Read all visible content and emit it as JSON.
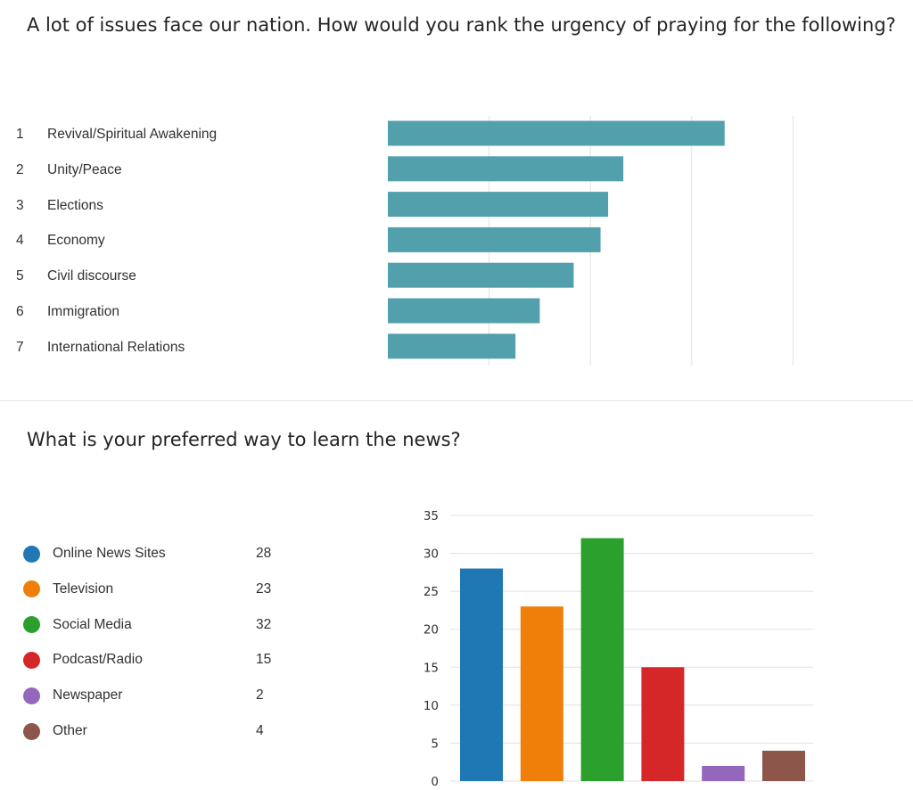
{
  "q1": {
    "title": "A lot of issues face our nation. How would you rank the urgency of praying for the following?",
    "items": [
      {
        "rank": "1",
        "label": "Revival/Spiritual Awakening"
      },
      {
        "rank": "2",
        "label": "Unity/Peace"
      },
      {
        "rank": "3",
        "label": "Elections"
      },
      {
        "rank": "4",
        "label": "Economy"
      },
      {
        "rank": "5",
        "label": "Civil discourse"
      },
      {
        "rank": "6",
        "label": "Immigration"
      },
      {
        "rank": "7",
        "label": "International Relations"
      }
    ]
  },
  "q2": {
    "title": "What is your preferred way to learn the news?",
    "legend": [
      {
        "label": "Online News Sites",
        "count": "28",
        "color": "#1f77b4"
      },
      {
        "label": "Television",
        "count": "23",
        "color": "#f07f09"
      },
      {
        "label": "Social Media",
        "count": "32",
        "color": "#2ca02c"
      },
      {
        "label": "Podcast/Radio",
        "count": "15",
        "color": "#d62728"
      },
      {
        "label": "Newspaper",
        "count": "2",
        "color": "#9467bd"
      },
      {
        "label": "Other",
        "count": "4",
        "color": "#8c564b"
      }
    ]
  },
  "chart_data": [
    {
      "type": "bar",
      "orientation": "horizontal",
      "categories": [
        "Revival/Spiritual Awakening",
        "Unity/Peace",
        "Elections",
        "Economy",
        "Civil discourse",
        "Immigration",
        "International Relations"
      ],
      "values": [
        6.65,
        4.65,
        4.35,
        4.2,
        3.67,
        3.0,
        2.52
      ],
      "xlim": [
        0,
        8
      ],
      "grid": true,
      "color": "#52a0ac"
    },
    {
      "type": "bar",
      "categories": [
        "Online News Sites",
        "Television",
        "Social Media",
        "Podcast/Radio",
        "Newspaper",
        "Other"
      ],
      "values": [
        28,
        23,
        32,
        15,
        2,
        4
      ],
      "colors": [
        "#1f77b4",
        "#f07f09",
        "#2ca02c",
        "#d62728",
        "#9467bd",
        "#8c564b"
      ],
      "ylim": [
        0,
        35
      ],
      "yticks": [
        "0",
        "5",
        "10",
        "15",
        "20",
        "25",
        "30",
        "35"
      ],
      "grid": true
    }
  ]
}
